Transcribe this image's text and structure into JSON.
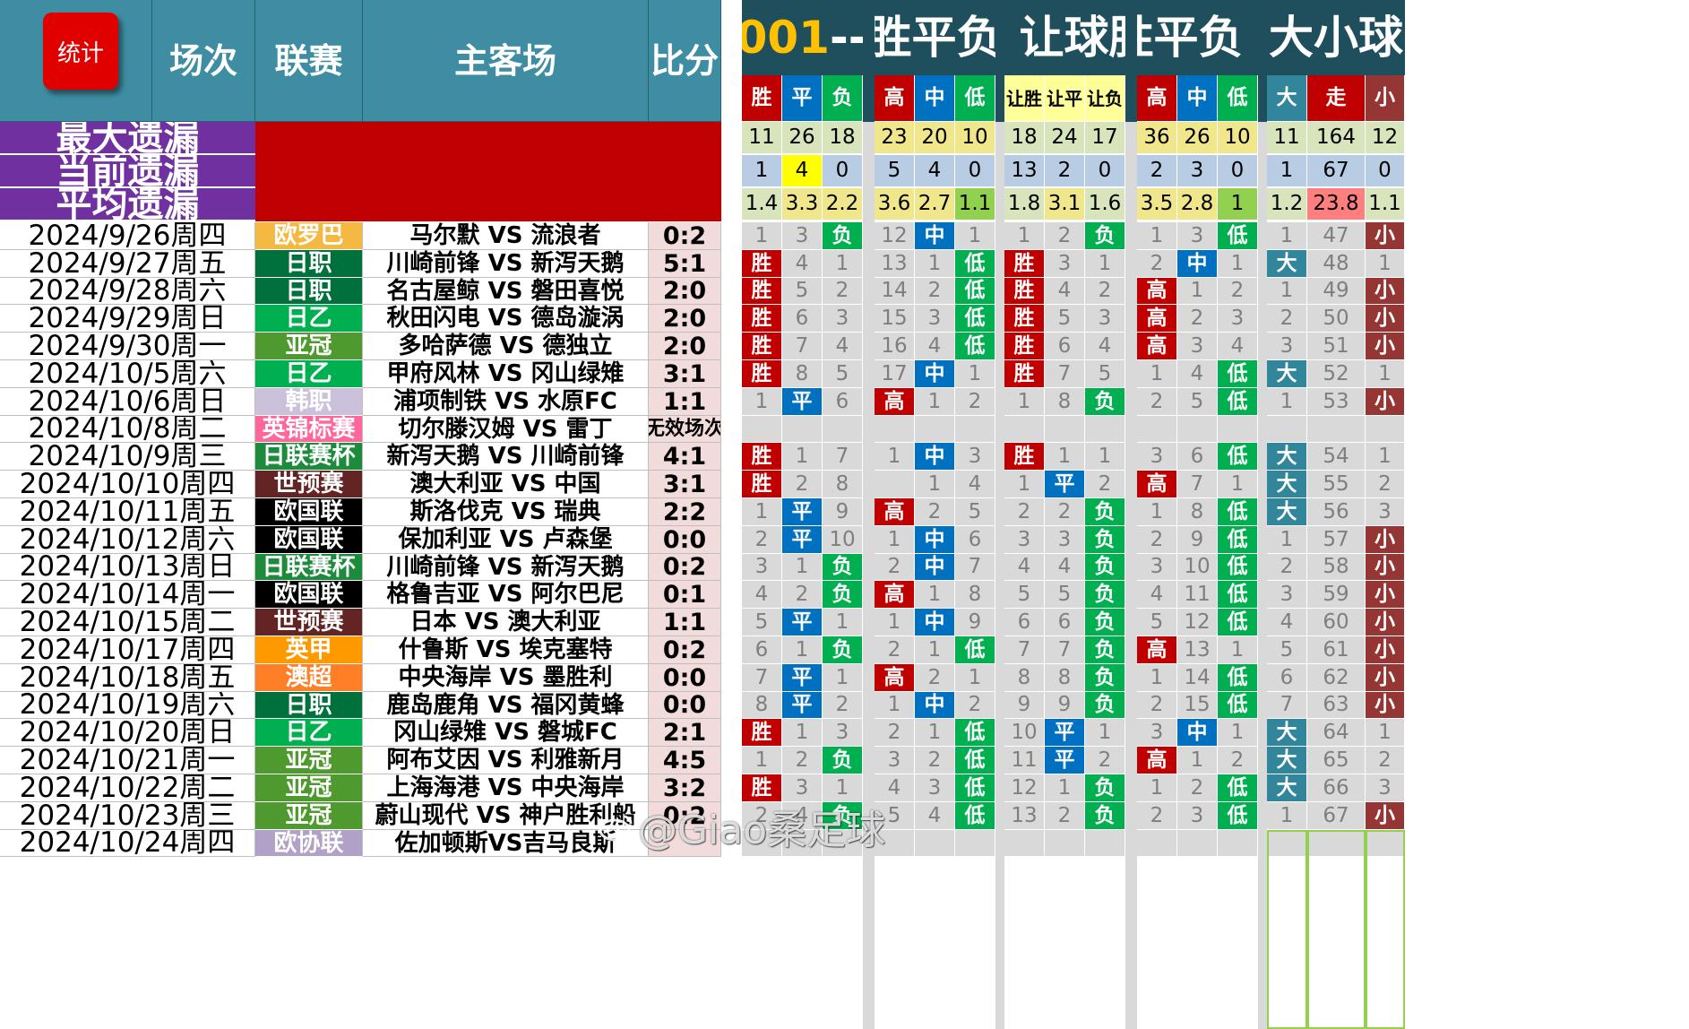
{
  "headers": {
    "stat_button": "统计",
    "round": "场次",
    "league": "联赛",
    "match": "主客场",
    "score": "比分"
  },
  "groups": [
    {
      "prefix": "001",
      "label": "--胜平负"
    },
    {
      "prefix": "",
      "label": "让球胜平负"
    },
    {
      "prefix": "",
      "label": "大小球"
    }
  ],
  "subheaders": [
    "胜",
    "平",
    "负",
    "高",
    "中",
    "低",
    "让胜",
    "让平",
    "让负",
    "高",
    "中",
    "低",
    "大",
    "走",
    "小"
  ],
  "miss_labels": [
    "最大遗漏",
    "当前遗漏",
    "平均遗漏"
  ],
  "miss_values": {
    "max": [
      "11",
      "26",
      "18",
      "23",
      "20",
      "10",
      "18",
      "24",
      "17",
      "36",
      "26",
      "10",
      "11",
      "164",
      "12"
    ],
    "current": [
      "1",
      "4",
      "0",
      "5",
      "4",
      "0",
      "13",
      "2",
      "0",
      "2",
      "3",
      "0",
      "1",
      "67",
      "0"
    ],
    "average": [
      "1.4",
      "3.3",
      "2.2",
      "3.6",
      "2.7",
      "1.1",
      "1.8",
      "3.1",
      "1.6",
      "3.5",
      "2.8",
      "1",
      "1.2",
      "23.8",
      "1.1"
    ]
  },
  "rows": [
    {
      "date": "2024/9/26周四",
      "league": "欧罗巴",
      "match": "马尔默 VS 流浪者",
      "score": "0:2",
      "cells": [
        "1",
        "3",
        "负",
        "12",
        "中",
        "1",
        "1",
        "2",
        "负",
        "1",
        "3",
        "低",
        "1",
        "47",
        "小"
      ]
    },
    {
      "date": "2024/9/27周五",
      "league": "日职",
      "match": "川崎前锋 VS 新泻天鹅",
      "score": "5:1",
      "cells": [
        "胜",
        "4",
        "1",
        "13",
        "1",
        "低",
        "胜",
        "3",
        "1",
        "2",
        "中",
        "1",
        "大",
        "48",
        "1"
      ]
    },
    {
      "date": "2024/9/28周六",
      "league": "日职",
      "match": "名古屋鲸 VS 磐田喜悦",
      "score": "2:0",
      "cells": [
        "胜",
        "5",
        "2",
        "14",
        "2",
        "低",
        "胜",
        "4",
        "2",
        "高",
        "1",
        "2",
        "1",
        "49",
        "小"
      ]
    },
    {
      "date": "2024/9/29周日",
      "league": "日乙",
      "match": "秋田闪电 VS 德岛漩涡",
      "score": "2:0",
      "cells": [
        "胜",
        "6",
        "3",
        "15",
        "3",
        "低",
        "胜",
        "5",
        "3",
        "高",
        "2",
        "3",
        "2",
        "50",
        "小"
      ]
    },
    {
      "date": "2024/9/30周一",
      "league": "亚冠",
      "match": "多哈萨德 VS 德独立",
      "score": "2:0",
      "cells": [
        "胜",
        "7",
        "4",
        "16",
        "4",
        "低",
        "胜",
        "6",
        "4",
        "高",
        "3",
        "4",
        "3",
        "51",
        "小"
      ]
    },
    {
      "date": "2024/10/5周六",
      "league": "日乙",
      "match": "甲府风林 VS 冈山绿雉",
      "score": "3:1",
      "cells": [
        "胜",
        "8",
        "5",
        "17",
        "中",
        "1",
        "胜",
        "7",
        "5",
        "1",
        "4",
        "低",
        "大",
        "52",
        "1"
      ]
    },
    {
      "date": "2024/10/6周日",
      "league": "韩职",
      "match": "浦项制铁 VS 水原FC",
      "score": "1:1",
      "cells": [
        "1",
        "平",
        "6",
        "高",
        "1",
        "2",
        "1",
        "8",
        "负",
        "2",
        "5",
        "低",
        "1",
        "53",
        "小"
      ]
    },
    {
      "date": "2024/10/8周二",
      "league": "英锦标赛",
      "match": "切尔滕汉姆 VS 雷丁",
      "score": "无效场次",
      "cells": [
        "",
        "",
        "",
        "",
        "",
        "",
        "",
        "",
        "",
        "",
        "",
        "",
        "",
        "",
        ""
      ]
    },
    {
      "date": "2024/10/9周三",
      "league": "日联赛杯",
      "match": "新泻天鹅 VS 川崎前锋",
      "score": "4:1",
      "cells": [
        "胜",
        "1",
        "7",
        "1",
        "中",
        "3",
        "胜",
        "1",
        "1",
        "3",
        "6",
        "低",
        "大",
        "54",
        "1"
      ]
    },
    {
      "date": "2024/10/10周四",
      "league": "世预赛",
      "match": "澳大利亚 VS 中国",
      "score": "3:1",
      "cells": [
        "胜",
        "2",
        "8",
        "",
        "1",
        "4",
        "1",
        "平",
        "2",
        "高",
        "7",
        "1",
        "大",
        "55",
        "2"
      ]
    },
    {
      "date": "2024/10/11周五",
      "league": "欧国联",
      "match": "斯洛伐克 VS 瑞典",
      "score": "2:2",
      "cells": [
        "1",
        "平",
        "9",
        "高",
        "2",
        "5",
        "2",
        "2",
        "负",
        "1",
        "8",
        "低",
        "大",
        "56",
        "3"
      ]
    },
    {
      "date": "2024/10/12周六",
      "league": "欧国联",
      "match": "保加利亚 VS 卢森堡",
      "score": "0:0",
      "cells": [
        "2",
        "平",
        "10",
        "1",
        "中",
        "6",
        "3",
        "3",
        "负",
        "2",
        "9",
        "低",
        "1",
        "57",
        "小"
      ]
    },
    {
      "date": "2024/10/13周日",
      "league": "日联赛杯",
      "match": "川崎前锋 VS 新泻天鹅",
      "score": "0:2",
      "cells": [
        "3",
        "1",
        "负",
        "2",
        "中",
        "7",
        "4",
        "4",
        "负",
        "3",
        "10",
        "低",
        "2",
        "58",
        "小"
      ]
    },
    {
      "date": "2024/10/14周一",
      "league": "欧国联",
      "match": "格鲁吉亚 VS 阿尔巴尼",
      "score": "0:1",
      "cells": [
        "4",
        "2",
        "负",
        "高",
        "1",
        "8",
        "5",
        "5",
        "负",
        "4",
        "11",
        "低",
        "3",
        "59",
        "小"
      ]
    },
    {
      "date": "2024/10/15周二",
      "league": "世预赛",
      "match": "日本 VS 澳大利亚",
      "score": "1:1",
      "cells": [
        "5",
        "平",
        "1",
        "1",
        "中",
        "9",
        "6",
        "6",
        "负",
        "5",
        "12",
        "低",
        "4",
        "60",
        "小"
      ]
    },
    {
      "date": "2024/10/17周四",
      "league": "英甲",
      "match": "什鲁斯 VS 埃克塞特",
      "score": "0:2",
      "cells": [
        "6",
        "1",
        "负",
        "2",
        "1",
        "低",
        "7",
        "7",
        "负",
        "高",
        "13",
        "1",
        "5",
        "61",
        "小"
      ]
    },
    {
      "date": "2024/10/18周五",
      "league": "澳超",
      "match": "中央海岸 VS 墨胜利",
      "score": "0:0",
      "cells": [
        "7",
        "平",
        "1",
        "高",
        "2",
        "1",
        "8",
        "8",
        "负",
        "1",
        "14",
        "低",
        "6",
        "62",
        "小"
      ]
    },
    {
      "date": "2024/10/19周六",
      "league": "日职",
      "match": "鹿岛鹿角 VS 福冈黄蜂",
      "score": "0:0",
      "cells": [
        "8",
        "平",
        "2",
        "1",
        "中",
        "2",
        "9",
        "9",
        "负",
        "2",
        "15",
        "低",
        "7",
        "63",
        "小"
      ]
    },
    {
      "date": "2024/10/20周日",
      "league": "日乙",
      "match": "冈山绿雉 VS 磐城FC",
      "score": "2:1",
      "cells": [
        "胜",
        "1",
        "3",
        "2",
        "1",
        "低",
        "10",
        "平",
        "1",
        "3",
        "中",
        "1",
        "大",
        "64",
        "1"
      ]
    },
    {
      "date": "2024/10/21周一",
      "league": "亚冠",
      "match": "阿布艾因 VS 利雅新月",
      "score": "4:5",
      "cells": [
        "1",
        "2",
        "负",
        "3",
        "2",
        "低",
        "11",
        "平",
        "2",
        "高",
        "1",
        "2",
        "大",
        "65",
        "2"
      ]
    },
    {
      "date": "2024/10/22周二",
      "league": "亚冠",
      "match": "上海海港 VS 中央海岸",
      "score": "3:2",
      "cells": [
        "胜",
        "3",
        "1",
        "4",
        "3",
        "低",
        "12",
        "1",
        "负",
        "1",
        "2",
        "低",
        "大",
        "66",
        "3"
      ]
    },
    {
      "date": "2024/10/23周三",
      "league": "亚冠",
      "match": "蔚山现代 VS 神户胜利船",
      "score": "0:2",
      "cells": [
        "2",
        "4",
        "负",
        "5",
        "4",
        "低",
        "13",
        "2",
        "负",
        "2",
        "3",
        "低",
        "1",
        "67",
        "小"
      ]
    },
    {
      "date": "2024/10/24周四",
      "league": "欧协联",
      "match": "佐加顿斯VS吉马良斯",
      "score": "",
      "cells": [
        "",
        "",
        "",
        "",
        "",
        "",
        "",
        "",
        "",
        "",
        "",
        "",
        "",
        "",
        ""
      ]
    }
  ],
  "colors": {
    "header_teal": "#3F8DA2",
    "header_dark": "#1F4E5C",
    "accent_gold": "#FFC000",
    "miss_purple": "#7030A0",
    "miss_red": "#C00000",
    "hit_win": "#C00000",
    "hit_draw": "#0070C0",
    "hit_loss": "#00B050",
    "hit_big": "#31869B",
    "hit_small": "#963634"
  },
  "league_colors": {
    "欧罗巴": "#F4B942",
    "日职": "#00703C",
    "日乙": "#00B050",
    "亚冠": "#4E9A2E",
    "韩职": "#CCC0DA",
    "英锦标赛": "#FF6699",
    "日联赛杯": "#1C8C3C",
    "世预赛": "#632523",
    "欧国联": "#000000",
    "英甲": "#FF9900",
    "澳超": "#FF7F27",
    "欧协联": "#B1A0C7"
  },
  "watermark": {
    "icon": "weibo-icon",
    "text": "@Giao桑足球"
  }
}
